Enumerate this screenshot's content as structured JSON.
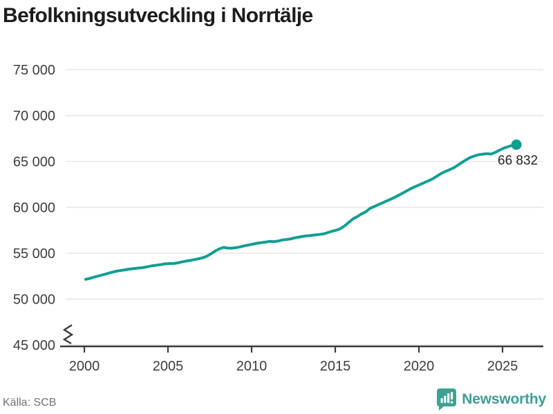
{
  "header": {
    "title": "Befolkningsutveckling i Norrtälje"
  },
  "footer": {
    "source": "Källa: SCB",
    "brand": "Newsworthy",
    "brand_icon": "newsworthy-bars-icon"
  },
  "colors": {
    "line": "#0d9f92",
    "grid": "#e5e5e5",
    "axis": "#3b3b3b",
    "title_text": "#1d1d1b",
    "tick_text": "#3d3d3d",
    "source_text": "#70707a",
    "brand_teal": "#3fa294"
  },
  "chart_data": {
    "type": "line",
    "title": "Befolkningsutveckling i Norrtälje",
    "xlabel": "",
    "ylabel": "",
    "x_ticks": [
      "2000",
      "2005",
      "2010",
      "2015",
      "2020",
      "2025"
    ],
    "x_tick_values": [
      2000,
      2005,
      2010,
      2015,
      2020,
      2025
    ],
    "y_ticks": [
      "45 000",
      "50 000",
      "55 000",
      "60 000",
      "65 000",
      "70 000",
      "75 000"
    ],
    "y_tick_values": [
      45000,
      50000,
      55000,
      60000,
      65000,
      70000,
      75000
    ],
    "ylim": [
      45000,
      75000
    ],
    "xlim": [
      1998.6,
      2027.4
    ],
    "grid": "horizontal",
    "axis_break_at_zero": true,
    "legend": "none",
    "series": [
      {
        "name": "Befolkning",
        "color": "#0d9f92",
        "end_value": 66832,
        "end_label": "66 832",
        "points": [
          [
            2000.08,
            52160
          ],
          [
            2000.33,
            52260
          ],
          [
            2000.58,
            52390
          ],
          [
            2000.83,
            52520
          ],
          [
            2001.08,
            52640
          ],
          [
            2001.33,
            52760
          ],
          [
            2001.58,
            52890
          ],
          [
            2001.83,
            53010
          ],
          [
            2002.08,
            53100
          ],
          [
            2002.33,
            53160
          ],
          [
            2002.58,
            53240
          ],
          [
            2002.83,
            53300
          ],
          [
            2003.08,
            53350
          ],
          [
            2003.33,
            53400
          ],
          [
            2003.58,
            53460
          ],
          [
            2003.83,
            53550
          ],
          [
            2004.08,
            53640
          ],
          [
            2004.33,
            53700
          ],
          [
            2004.58,
            53760
          ],
          [
            2004.83,
            53840
          ],
          [
            2005.08,
            53870
          ],
          [
            2005.33,
            53880
          ],
          [
            2005.58,
            53950
          ],
          [
            2005.83,
            54050
          ],
          [
            2006.08,
            54140
          ],
          [
            2006.33,
            54220
          ],
          [
            2006.58,
            54310
          ],
          [
            2006.83,
            54400
          ],
          [
            2007.08,
            54500
          ],
          [
            2007.33,
            54680
          ],
          [
            2007.58,
            54950
          ],
          [
            2007.83,
            55250
          ],
          [
            2008.08,
            55480
          ],
          [
            2008.33,
            55640
          ],
          [
            2008.58,
            55560
          ],
          [
            2008.83,
            55560
          ],
          [
            2009.08,
            55610
          ],
          [
            2009.33,
            55700
          ],
          [
            2009.58,
            55810
          ],
          [
            2009.83,
            55900
          ],
          [
            2010.08,
            55990
          ],
          [
            2010.33,
            56090
          ],
          [
            2010.58,
            56160
          ],
          [
            2010.83,
            56210
          ],
          [
            2011.08,
            56300
          ],
          [
            2011.33,
            56260
          ],
          [
            2011.58,
            56320
          ],
          [
            2011.83,
            56440
          ],
          [
            2012.08,
            56500
          ],
          [
            2012.33,
            56560
          ],
          [
            2012.58,
            56680
          ],
          [
            2012.83,
            56760
          ],
          [
            2013.08,
            56840
          ],
          [
            2013.33,
            56900
          ],
          [
            2013.58,
            56950
          ],
          [
            2013.83,
            57000
          ],
          [
            2014.08,
            57050
          ],
          [
            2014.33,
            57120
          ],
          [
            2014.58,
            57260
          ],
          [
            2014.83,
            57400
          ],
          [
            2015.08,
            57520
          ],
          [
            2015.33,
            57700
          ],
          [
            2015.58,
            58010
          ],
          [
            2015.83,
            58400
          ],
          [
            2016.08,
            58760
          ],
          [
            2016.33,
            59010
          ],
          [
            2016.58,
            59290
          ],
          [
            2016.83,
            59520
          ],
          [
            2017.08,
            59890
          ],
          [
            2017.33,
            60090
          ],
          [
            2017.58,
            60290
          ],
          [
            2017.83,
            60500
          ],
          [
            2018.08,
            60700
          ],
          [
            2018.33,
            60900
          ],
          [
            2018.58,
            61110
          ],
          [
            2018.83,
            61350
          ],
          [
            2019.08,
            61600
          ],
          [
            2019.33,
            61850
          ],
          [
            2019.58,
            62090
          ],
          [
            2019.83,
            62300
          ],
          [
            2020.08,
            62500
          ],
          [
            2020.33,
            62700
          ],
          [
            2020.58,
            62900
          ],
          [
            2020.83,
            63110
          ],
          [
            2021.08,
            63400
          ],
          [
            2021.33,
            63690
          ],
          [
            2021.58,
            63900
          ],
          [
            2021.83,
            64100
          ],
          [
            2022.08,
            64310
          ],
          [
            2022.33,
            64600
          ],
          [
            2022.58,
            64900
          ],
          [
            2022.83,
            65190
          ],
          [
            2023.08,
            65440
          ],
          [
            2023.33,
            65600
          ],
          [
            2023.58,
            65740
          ],
          [
            2023.83,
            65800
          ],
          [
            2024.08,
            65850
          ],
          [
            2024.33,
            65810
          ],
          [
            2024.58,
            66000
          ],
          [
            2024.83,
            66250
          ],
          [
            2025.08,
            66450
          ],
          [
            2025.33,
            66610
          ],
          [
            2025.58,
            66750
          ],
          [
            2025.83,
            66832
          ]
        ]
      }
    ]
  }
}
